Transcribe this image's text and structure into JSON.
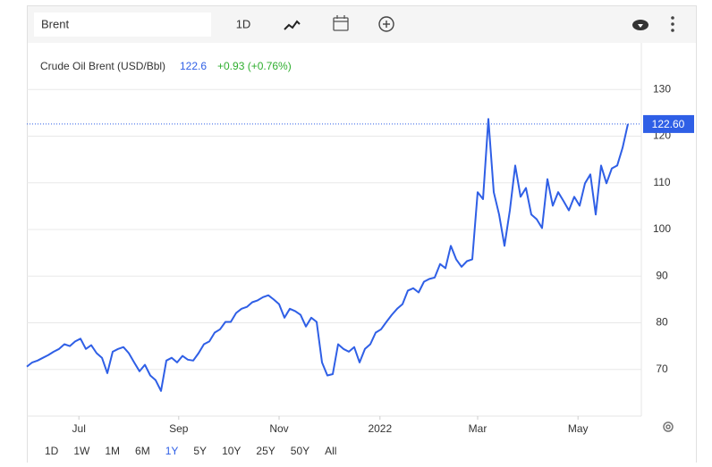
{
  "header": {
    "search": "Brent",
    "interval": "1D",
    "title": "Crude Oil Brent (USD/Bbl)",
    "price": "122.6",
    "change": "+0.93 (+0.76%)"
  },
  "ranges": [
    "1D",
    "1W",
    "1M",
    "6M",
    "1Y",
    "5Y",
    "10Y",
    "25Y",
    "50Y",
    "All"
  ],
  "active_range": "1Y",
  "chart_data": {
    "type": "line",
    "color": "#2f5fe6",
    "values": [
      70.6,
      71.5,
      71.9,
      72.5,
      73.1,
      73.8,
      74.4,
      75.4,
      75.0,
      76,
      76.6,
      74.4,
      75.2,
      73.5,
      72.5,
      69.2,
      73.8,
      74.4,
      74.8,
      73.5,
      71.5,
      69.6,
      71,
      68.7,
      67.7,
      65.4,
      71.9,
      72.5,
      71.5,
      72.9,
      72.1,
      71.9,
      73.5,
      75.4,
      76,
      77.9,
      78.6,
      80.2,
      80.2,
      82.1,
      83,
      83.4,
      84.4,
      84.8,
      85.5,
      85.9,
      85.0,
      84,
      81.1,
      83,
      82.5,
      81.7,
      79.2,
      81.1,
      80.2,
      71.5,
      68.7,
      69,
      75.4,
      74.4,
      73.8,
      74.8,
      71.5,
      74.4,
      75.4,
      77.9,
      78.6,
      80.2,
      81.7,
      83,
      84,
      86.9,
      87.4,
      86.5,
      88.8,
      89.4,
      89.7,
      92.6,
      91.7,
      96.5,
      93.6,
      92,
      93.2,
      93.6,
      108,
      106.5,
      123.7,
      108,
      103.2,
      96.5,
      104.1,
      113.7,
      107,
      108.9,
      103.2,
      102.2,
      100.3,
      110.8,
      105.1,
      108,
      106.1,
      104.1,
      107,
      105.1,
      109.9,
      111.8,
      103.2,
      113.7,
      109.9,
      113.1,
      113.7,
      117.5,
      122.6
    ],
    "last_value_label": "122.60",
    "xlim": [
      0,
      114.5
    ],
    "xticks": [
      {
        "value": 9.7,
        "label": "Jul"
      },
      {
        "value": 28.3,
        "label": "Sep"
      },
      {
        "value": 47,
        "label": "Nov"
      },
      {
        "value": 65.8,
        "label": "2022"
      },
      {
        "value": 84,
        "label": "Mar"
      },
      {
        "value": 102.7,
        "label": "May"
      }
    ],
    "ylim": [
      60,
      140
    ],
    "yticks": [
      70,
      80,
      90,
      100,
      110,
      120,
      130
    ],
    "grid": true
  }
}
